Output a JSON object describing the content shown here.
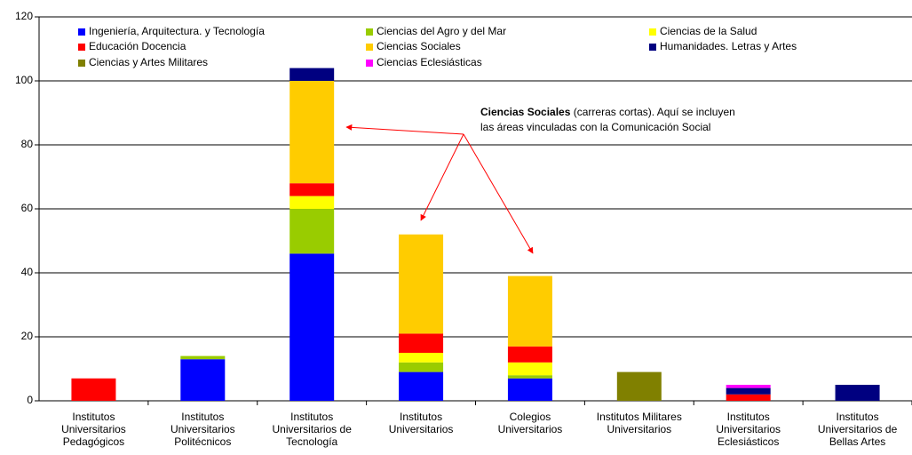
{
  "chart_data": {
    "type": "stacked_bar",
    "categories": [
      "Institutos Universitarios Pedagógicos",
      "Institutos Universitarios Politécnicos",
      "Institutos Universitarios de Tecnología",
      "Institutos Universitarios",
      "Colegios Universitarios",
      "Institutos Militares Universitarios",
      "Institutos Universitarios Eclesiásticos",
      "Institutos Universitarios de Bellas Artes"
    ],
    "series": [
      {
        "name": "Ingeniería, Arquitectura. y Tecnología",
        "color": "#0000ff",
        "values": [
          0,
          13,
          46,
          9,
          7,
          0,
          0,
          0
        ]
      },
      {
        "name": "Ciencias del Agro y del Mar",
        "color": "#99cc00",
        "values": [
          0,
          1,
          14,
          3,
          1,
          0,
          0,
          0
        ]
      },
      {
        "name": "Ciencias de la Salud",
        "color": "#ffff00",
        "values": [
          0,
          0,
          4,
          3,
          4,
          0,
          0,
          0
        ]
      },
      {
        "name": "Educación Docencia",
        "color": "#ff0000",
        "values": [
          7,
          0,
          4,
          6,
          5,
          0,
          2,
          0
        ]
      },
      {
        "name": "Ciencias Sociales",
        "color": "#ffcc00",
        "values": [
          0,
          0,
          32,
          31,
          22,
          0,
          0,
          0
        ]
      },
      {
        "name": "Humanidades. Letras y Artes",
        "color": "#000080",
        "values": [
          0,
          0,
          4,
          0,
          0,
          0,
          2,
          5
        ]
      },
      {
        "name": "Ciencias y Artes Militares",
        "color": "#808000",
        "values": [
          0,
          0,
          0,
          0,
          0,
          9,
          0,
          0
        ]
      },
      {
        "name": "Ciencias Eclesiásticas",
        "color": "#ff00ff",
        "values": [
          0,
          0,
          0,
          0,
          0,
          0,
          1,
          0
        ]
      }
    ],
    "ylim": [
      0,
      120
    ],
    "yticks": [
      0,
      20,
      40,
      60,
      80,
      100,
      120
    ],
    "grid": true,
    "annotation": {
      "bold": "Ciencias Sociales",
      "lines": [
        "(carreras cortas). Aquí se incluyen",
        "las áreas vinculadas con la Comunicación Social"
      ]
    }
  }
}
